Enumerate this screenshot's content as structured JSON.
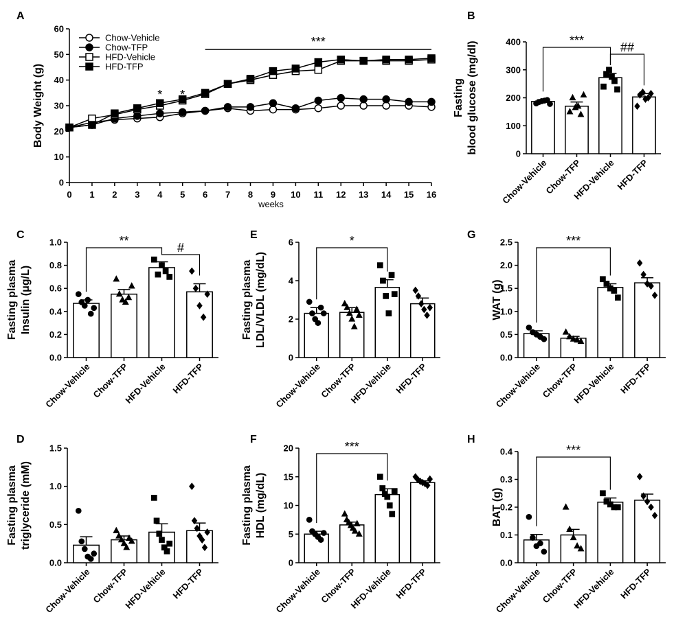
{
  "chart_data": [
    {
      "panel": "A",
      "type": "line",
      "title": "",
      "xlabel": "weeks",
      "ylabel": "Body Weight (g)",
      "x": [
        0,
        1,
        2,
        3,
        4,
        5,
        6,
        7,
        8,
        9,
        10,
        11,
        12,
        13,
        14,
        15,
        16
      ],
      "xlim": [
        0,
        16
      ],
      "ylim": [
        0,
        60
      ],
      "yticks": [
        0,
        10,
        20,
        30,
        40,
        50,
        60
      ],
      "series": [
        {
          "name": "Chow-Vehicle",
          "marker": "open-circle",
          "values": [
            21.5,
            23.5,
            24.5,
            25,
            25.5,
            27,
            28,
            29,
            28,
            28.5,
            28.5,
            29,
            30,
            30,
            30,
            30,
            29.5
          ]
        },
        {
          "name": "Chow-TFP",
          "marker": "filled-circle",
          "values": [
            21.5,
            22.5,
            25,
            26,
            27,
            27.5,
            28,
            29.5,
            29.5,
            31,
            29,
            32,
            33,
            32.5,
            32.5,
            31.5,
            31.5
          ]
        },
        {
          "name": "HFD-Vehicle",
          "marker": "open-square",
          "values": [
            21.5,
            25,
            26.5,
            28.5,
            30,
            32,
            34.5,
            38.5,
            40,
            42,
            43.5,
            44,
            47.5,
            47.5,
            47.5,
            47.5,
            48
          ]
        },
        {
          "name": "HFD-TFP",
          "marker": "filled-square",
          "values": [
            21.5,
            22.5,
            27,
            29,
            31,
            32.5,
            35,
            38.5,
            40.5,
            43.5,
            44.5,
            47,
            48,
            47.5,
            48,
            48,
            48.5
          ]
        }
      ],
      "annotations": [
        {
          "text": "*",
          "x": 4
        },
        {
          "text": "*",
          "x": 5
        },
        {
          "text": "***",
          "x_range": [
            6,
            16
          ]
        }
      ]
    },
    {
      "panel": "B",
      "type": "bar",
      "categories": [
        "Chow-Vehicle",
        "Chow-TFP",
        "HFD-Vehicle",
        "HFD-TFP"
      ],
      "values": [
        187,
        170,
        272,
        203
      ],
      "errors": [
        6,
        15,
        15,
        12
      ],
      "points": [
        [
          180,
          185,
          188,
          190,
          192,
          178
        ],
        [
          150,
          200,
          165,
          170,
          140,
          210
        ],
        [
          240,
          285,
          300,
          275,
          260,
          230
        ],
        [
          170,
          210,
          220,
          195,
          200,
          215
        ]
      ],
      "point_markers": [
        "circle",
        "triangle",
        "square",
        "diamond"
      ],
      "ylabel": [
        "Fasting",
        "blood glucose (mg/dl)"
      ],
      "ylim": [
        0,
        400
      ],
      "yticks": [
        0,
        100,
        200,
        300,
        400
      ],
      "brackets": [
        {
          "from": 0,
          "to": 2,
          "text": "***"
        },
        {
          "from": 2,
          "to": 3,
          "text": "##"
        }
      ]
    },
    {
      "panel": "C",
      "type": "bar",
      "categories": [
        "Chow-Vehicle",
        "Chow-TFP",
        "HFD-Vehicle",
        "HFD-TFP"
      ],
      "values": [
        0.47,
        0.55,
        0.78,
        0.57
      ],
      "errors": [
        0.03,
        0.04,
        0.05,
        0.07
      ],
      "points": [
        [
          0.55,
          0.48,
          0.45,
          0.5,
          0.38,
          0.43
        ],
        [
          0.68,
          0.55,
          0.5,
          0.48,
          0.52,
          0.62
        ],
        [
          0.85,
          0.72,
          0.8,
          0.75,
          0.7
        ],
        [
          0.75,
          0.6,
          0.45,
          0.35,
          0.55
        ]
      ],
      "point_markers": [
        "circle",
        "triangle",
        "square",
        "diamond"
      ],
      "ylabel": [
        "Fasting plasma",
        "Insulin (μg/L)"
      ],
      "ylim": [
        0,
        1.0
      ],
      "yticks": [
        "0.0",
        "0.2",
        "0.4",
        "0.6",
        "0.8",
        "1.0"
      ],
      "brackets": [
        {
          "from": 0,
          "to": 2,
          "text": "**"
        },
        {
          "from": 2,
          "to": 3,
          "text": "#"
        }
      ]
    },
    {
      "panel": "E",
      "type": "bar",
      "categories": [
        "Chow-Vehicle",
        "Chow-TFP",
        "HFD-Vehicle",
        "HFD-TFP"
      ],
      "values": [
        2.3,
        2.35,
        3.65,
        2.8
      ],
      "errors": [
        0.3,
        0.25,
        0.4,
        0.3
      ],
      "points": [
        [
          2.9,
          2.3,
          2.0,
          1.8,
          2.6,
          2.3
        ],
        [
          2.8,
          2.6,
          2.3,
          2.0,
          1.6,
          2.5,
          2.2
        ],
        [
          4.8,
          4.0,
          3.2,
          2.3,
          4.3,
          3.3
        ],
        [
          3.5,
          3.2,
          2.8,
          2.5,
          2.2,
          2.6
        ]
      ],
      "point_markers": [
        "circle",
        "triangle",
        "square",
        "diamond"
      ],
      "ylabel": [
        "Fasting plasma",
        "LDL/VLDL (mg/dL)"
      ],
      "ylim": [
        0,
        6
      ],
      "yticks": [
        0,
        2,
        4,
        6
      ],
      "brackets": [
        {
          "from": 0,
          "to": 2,
          "text": "*"
        }
      ]
    },
    {
      "panel": "G",
      "type": "bar",
      "categories": [
        "Chow-Vehicle",
        "Chow-TFP",
        "HFD-Vehicle",
        "HFD-TFP"
      ],
      "values": [
        0.52,
        0.42,
        1.52,
        1.62
      ],
      "errors": [
        0.06,
        0.04,
        0.08,
        0.11
      ],
      "points": [
        [
          0.65,
          0.55,
          0.5,
          0.45,
          0.4
        ],
        [
          0.55,
          0.45,
          0.4,
          0.38,
          0.35
        ],
        [
          1.7,
          1.6,
          1.5,
          1.45,
          1.3
        ],
        [
          2.05,
          1.8,
          1.6,
          1.55,
          1.35
        ]
      ],
      "point_markers": [
        "circle",
        "triangle",
        "square",
        "diamond"
      ],
      "ylabel": [
        "WAT (g)"
      ],
      "ylim": [
        0,
        2.5
      ],
      "yticks": [
        "0.0",
        "0.5",
        "1.0",
        "1.5",
        "2.0",
        "2.5"
      ],
      "brackets": [
        {
          "from": 0,
          "to": 2,
          "text": "***"
        }
      ]
    },
    {
      "panel": "D",
      "type": "bar",
      "categories": [
        "Chow-Vehicle",
        "Chow-TFP",
        "HFD-Vehicle",
        "HFD-TFP"
      ],
      "values": [
        0.23,
        0.3,
        0.4,
        0.42
      ],
      "errors": [
        0.11,
        0.05,
        0.11,
        0.1
      ],
      "points": [
        [
          0.68,
          0.28,
          0.18,
          0.08,
          0.05,
          0.12
        ],
        [
          0.42,
          0.35,
          0.3,
          0.25,
          0.2,
          0.32,
          0.28
        ],
        [
          0.85,
          0.55,
          0.38,
          0.3,
          0.2,
          0.15,
          0.25
        ],
        [
          1.0,
          0.55,
          0.45,
          0.35,
          0.3,
          0.2,
          0.4
        ]
      ],
      "point_markers": [
        "circle",
        "triangle",
        "square",
        "diamond"
      ],
      "ylabel": [
        "Fasting plasma",
        "triglyceride (mM)"
      ],
      "ylim": [
        0,
        1.5
      ],
      "yticks": [
        "0.0",
        "0.5",
        "1.0",
        "1.5"
      ],
      "brackets": []
    },
    {
      "panel": "F",
      "type": "bar",
      "categories": [
        "Chow-Vehicle",
        "Chow-TFP",
        "HFD-Vehicle",
        "HFD-TFP"
      ],
      "values": [
        5.0,
        6.6,
        11.9,
        14.0
      ],
      "errors": [
        0.5,
        0.5,
        1.0,
        0.3
      ],
      "points": [
        [
          7.5,
          5.5,
          5.0,
          4.5,
          4.0,
          5.2
        ],
        [
          8.5,
          7.5,
          7.0,
          6.5,
          6.0,
          5.5,
          6.8,
          5.0
        ],
        [
          15.0,
          13.0,
          12.0,
          11.5,
          10.0,
          8.5,
          12.5
        ],
        [
          15.0,
          14.5,
          14.2,
          14.0,
          13.8,
          13.5,
          14.6
        ]
      ],
      "point_markers": [
        "circle",
        "triangle",
        "square",
        "diamond"
      ],
      "ylabel": [
        "Fasting plasma",
        "HDL (mg/dL)"
      ],
      "ylim": [
        0,
        20
      ],
      "yticks": [
        0,
        5,
        10,
        15,
        20
      ],
      "brackets": [
        {
          "from": 0,
          "to": 2,
          "text": "***"
        }
      ]
    },
    {
      "panel": "H",
      "type": "bar",
      "categories": [
        "Chow-Vehicle",
        "Chow-TFP",
        "HFD-Vehicle",
        "HFD-TFP"
      ],
      "values": [
        0.082,
        0.1,
        0.218,
        0.225
      ],
      "errors": [
        0.02,
        0.02,
        0.015,
        0.022
      ],
      "points": [
        [
          0.165,
          0.09,
          0.06,
          0.07,
          0.04
        ],
        [
          0.2,
          0.12,
          0.09,
          0.06,
          0.05
        ],
        [
          0.25,
          0.22,
          0.21,
          0.2,
          0.2
        ],
        [
          0.31,
          0.24,
          0.22,
          0.2,
          0.17
        ]
      ],
      "point_markers": [
        "circle",
        "triangle",
        "square",
        "diamond"
      ],
      "ylabel": [
        "BAT (g)"
      ],
      "ylim": [
        0,
        0.4
      ],
      "yticks": [
        "0.0",
        "0.1",
        "0.2",
        "0.3",
        "0.4"
      ],
      "brackets": [
        {
          "from": 0,
          "to": 2,
          "text": "***"
        }
      ]
    }
  ]
}
